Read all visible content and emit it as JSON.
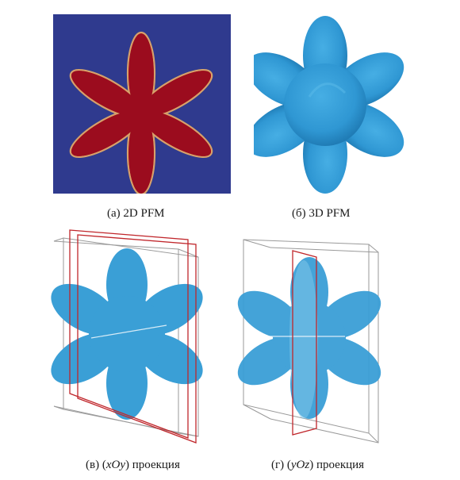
{
  "figure": {
    "panels": [
      {
        "id": "a",
        "caption": "(а) 2D PFM"
      },
      {
        "id": "b",
        "caption": "(б) 3D PFM"
      },
      {
        "id": "c",
        "caption_prefix": "(в) (",
        "caption_italic": "xOy",
        "caption_suffix": ") проекция"
      },
      {
        "id": "d",
        "caption_prefix": "(г) (",
        "caption_italic": "yOz",
        "caption_suffix": ") проекция"
      }
    ],
    "colors": {
      "background_2d": "#2f3a8e",
      "crystal_2d": "#9b0c1e",
      "interface_2d": "#d7a16a",
      "crystal_3d": "#2f97d3",
      "plane": "#c0262b",
      "box": "#9a9a9a"
    }
  }
}
